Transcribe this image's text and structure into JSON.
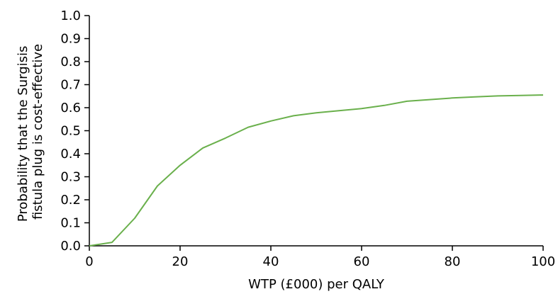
{
  "chart_data": {
    "type": "line",
    "title": "",
    "xlabel": "WTP (£000) per QALY",
    "ylabel_lines": [
      "Probability that the Surgisis",
      "fistula plug is cost-effective"
    ],
    "xlim": [
      0,
      100
    ],
    "ylim": [
      0,
      1.0
    ],
    "x_ticks": [
      "0",
      "20",
      "40",
      "60",
      "80",
      "100"
    ],
    "y_ticks": [
      "0.0",
      "0.1",
      "0.2",
      "0.3",
      "0.4",
      "0.5",
      "0.6",
      "0.7",
      "0.8",
      "0.9",
      "1.0"
    ],
    "grid": false,
    "series": [
      {
        "color": "#6ab04c",
        "x": [
          0,
          5,
          10,
          15,
          20,
          25,
          30,
          35,
          40,
          45,
          50,
          55,
          60,
          65,
          70,
          75,
          80,
          85,
          90,
          95,
          100
        ],
        "y": [
          0.0,
          0.015,
          0.12,
          0.26,
          0.35,
          0.425,
          0.468,
          0.515,
          0.542,
          0.565,
          0.578,
          0.587,
          0.596,
          0.61,
          0.628,
          0.635,
          0.642,
          0.647,
          0.651,
          0.653,
          0.655
        ]
      }
    ]
  }
}
